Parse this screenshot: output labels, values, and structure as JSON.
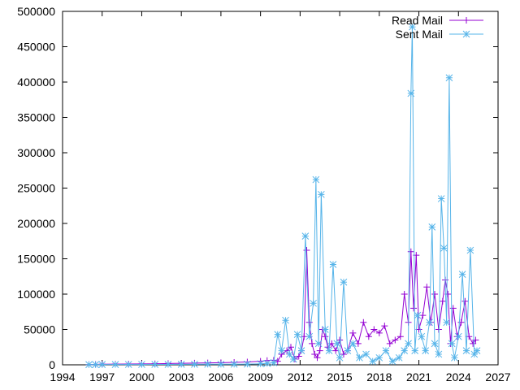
{
  "chart_data": {
    "type": "line",
    "title": "",
    "xlabel": "",
    "ylabel": "",
    "xlim": [
      1994,
      2027
    ],
    "ylim": [
      0,
      500000
    ],
    "x_ticks": [
      1994,
      1997,
      2000,
      2003,
      2006,
      2009,
      2012,
      2015,
      2018,
      2021,
      2024,
      2027
    ],
    "y_ticks": [
      0,
      50000,
      100000,
      150000,
      200000,
      250000,
      300000,
      350000,
      400000,
      450000,
      500000
    ],
    "grid": false,
    "legend_position": "top-right",
    "series": [
      {
        "name": "Read Mail",
        "color": "#9400d3",
        "marker": "plus",
        "x": [
          1996.0,
          1996.5,
          1997.0,
          1998.0,
          1999.0,
          2000.0,
          2001.0,
          2002.0,
          2003.0,
          2004.0,
          2005.0,
          2006.0,
          2007.0,
          2008.0,
          2009.0,
          2009.5,
          2010.0,
          2010.3,
          2010.6,
          2011.0,
          2011.3,
          2011.6,
          2011.9,
          2012.1,
          2012.3,
          2012.5,
          2012.7,
          2012.9,
          2013.1,
          2013.3,
          2013.5,
          2013.7,
          2013.9,
          2014.1,
          2014.4,
          2014.7,
          2015.0,
          2015.3,
          2015.6,
          2016.0,
          2016.4,
          2016.8,
          2017.2,
          2017.6,
          2018.0,
          2018.4,
          2018.8,
          2019.2,
          2019.6,
          2019.9,
          2020.2,
          2020.4,
          2020.6,
          2020.8,
          2021.0,
          2021.3,
          2021.6,
          2021.9,
          2022.2,
          2022.5,
          2022.8,
          2023.0,
          2023.2,
          2023.4,
          2023.6,
          2023.9,
          2024.2,
          2024.5,
          2024.8,
          2025.1,
          2025.3
        ],
        "y": [
          500,
          600,
          800,
          1000,
          1200,
          1300,
          1500,
          1800,
          2200,
          2500,
          2800,
          3000,
          3500,
          4000,
          5000,
          6000,
          6500,
          5000,
          15000,
          20000,
          25000,
          8000,
          12000,
          20000,
          40000,
          162000,
          60000,
          30000,
          15000,
          10000,
          20000,
          50000,
          40000,
          25000,
          30000,
          20000,
          35000,
          15000,
          20000,
          45000,
          30000,
          60000,
          40000,
          50000,
          45000,
          55000,
          30000,
          35000,
          40000,
          100000,
          60000,
          160000,
          80000,
          155000,
          50000,
          70000,
          110000,
          60000,
          100000,
          50000,
          90000,
          120000,
          100000,
          30000,
          80000,
          40000,
          60000,
          90000,
          40000,
          30000,
          35000
        ]
      },
      {
        "name": "Sent Mail",
        "color": "#56b4e9",
        "marker": "star",
        "x": [
          1996.0,
          1996.5,
          1997.0,
          1998.0,
          1999.0,
          2000.0,
          2001.0,
          2002.0,
          2003.0,
          2004.0,
          2005.0,
          2006.0,
          2007.0,
          2008.0,
          2009.0,
          2009.5,
          2010.0,
          2010.3,
          2010.6,
          2010.9,
          2011.2,
          2011.5,
          2011.8,
          2012.1,
          2012.4,
          2012.7,
          2013.0,
          2013.2,
          2013.4,
          2013.6,
          2013.9,
          2014.2,
          2014.5,
          2014.8,
          2015.0,
          2015.3,
          2015.6,
          2016.0,
          2016.5,
          2017.0,
          2017.5,
          2018.0,
          2018.5,
          2019.0,
          2019.5,
          2019.9,
          2020.2,
          2020.4,
          2020.5,
          2020.7,
          2020.9,
          2021.2,
          2021.5,
          2021.8,
          2022.0,
          2022.2,
          2022.5,
          2022.7,
          2022.9,
          2023.1,
          2023.3,
          2023.5,
          2023.7,
          2024.0,
          2024.3,
          2024.6,
          2024.9,
          2025.2,
          2025.4
        ],
        "y": [
          300,
          300,
          400,
          400,
          500,
          500,
          600,
          600,
          700,
          700,
          800,
          800,
          900,
          1000,
          1500,
          2000,
          3000,
          43000,
          20000,
          63000,
          15000,
          8000,
          43000,
          20000,
          182000,
          40000,
          87000,
          262000,
          30000,
          241000,
          50000,
          20000,
          142000,
          30000,
          10000,
          117000,
          20000,
          30000,
          10000,
          15000,
          5000,
          10000,
          20000,
          5000,
          10000,
          20000,
          30000,
          384000,
          478000,
          20000,
          70000,
          40000,
          20000,
          60000,
          195000,
          30000,
          15000,
          235000,
          165000,
          60000,
          406000,
          30000,
          10000,
          40000,
          128000,
          20000,
          162000,
          15000,
          20000
        ]
      }
    ]
  }
}
